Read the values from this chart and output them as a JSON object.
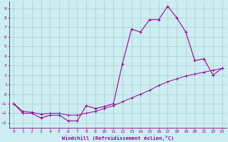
{
  "xlabel": "Windchill (Refroidissement éolien,°C)",
  "bg_color": "#cceef2",
  "grid_color": "#aacccc",
  "line_color": "#990099",
  "x_ticks": [
    0,
    1,
    2,
    3,
    4,
    5,
    6,
    7,
    8,
    9,
    10,
    11,
    12,
    13,
    14,
    15,
    16,
    17,
    18,
    19,
    20,
    21,
    22,
    23
  ],
  "y_ticks": [
    -3,
    -2,
    -1,
    0,
    1,
    2,
    3,
    4,
    5,
    6,
    7,
    8,
    9
  ],
  "ylim": [
    -3.5,
    9.7
  ],
  "xlim": [
    -0.5,
    23.5
  ],
  "curve1_x": [
    0,
    1,
    2,
    3,
    4,
    5,
    6,
    7,
    8,
    9,
    10,
    11,
    12,
    13,
    14,
    15,
    16,
    17,
    18,
    19,
    20,
    21,
    22,
    23
  ],
  "curve1_y": [
    -1,
    -2,
    -2,
    -2.5,
    -2.2,
    -2.2,
    -2.8,
    -2.8,
    -1.2,
    -1.5,
    -1.3,
    -1.0,
    3.2,
    6.8,
    6.5,
    7.8,
    7.8,
    9.2,
    8.0,
    6.5,
    3.5,
    3.7,
    2.0,
    2.7
  ],
  "curve2_x": [
    0,
    1,
    2,
    3,
    4,
    5,
    6,
    7,
    8,
    9,
    10,
    11,
    12,
    13,
    14,
    15,
    16,
    17,
    18,
    19,
    20,
    21,
    22,
    23
  ],
  "curve2_y": [
    -1.0,
    -1.8,
    -1.9,
    -2.1,
    -2.0,
    -2.0,
    -2.2,
    -2.2,
    -2.0,
    -1.8,
    -1.5,
    -1.2,
    -0.8,
    -0.4,
    0.0,
    0.4,
    0.9,
    1.3,
    1.6,
    1.9,
    2.1,
    2.3,
    2.5,
    2.7
  ]
}
